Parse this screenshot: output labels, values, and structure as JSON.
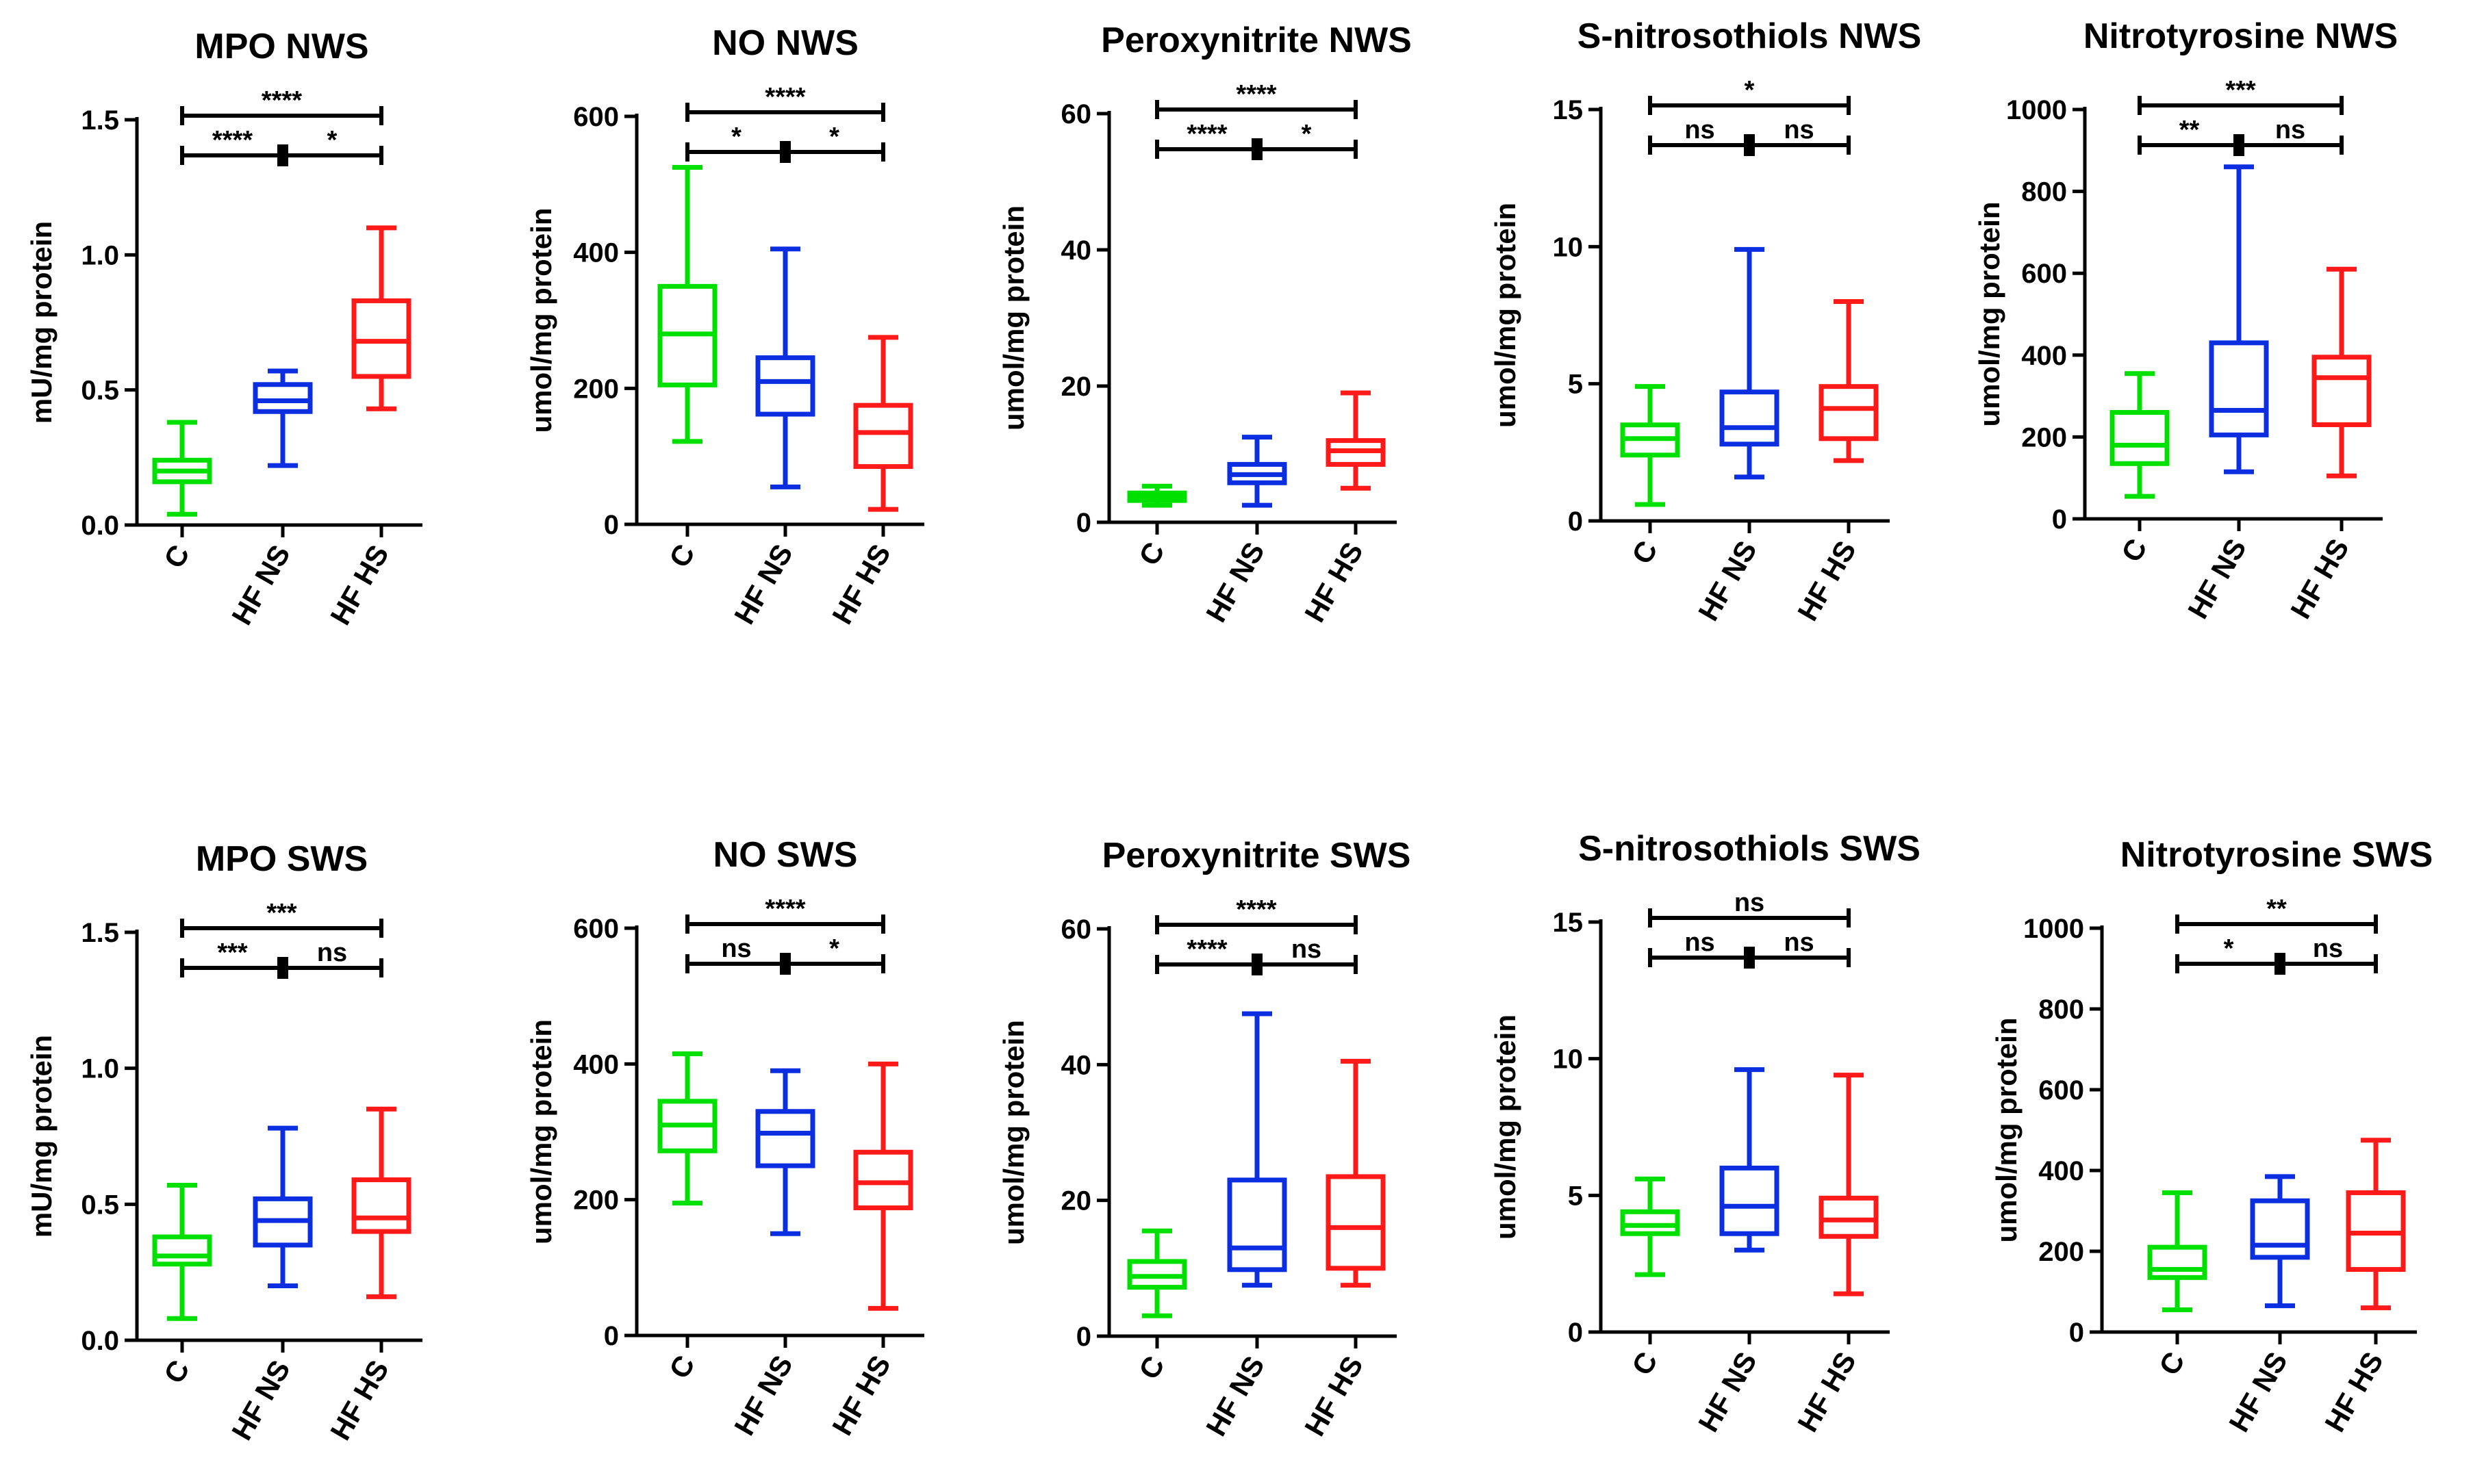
{
  "figure": {
    "panels_label": "Box plots of oxidative/nitrosative markers in NWS and SWS"
  },
  "chart_data": [
    {
      "type": "box",
      "title": "MPO NWS",
      "ylabel": "mU/mg protein",
      "categories": [
        "C",
        "HF NS",
        "HF HS"
      ],
      "ylim": [
        0,
        1.5
      ],
      "yticks": [
        "0.0",
        "0.5",
        "1.0",
        "1.5"
      ],
      "ytick_values": [
        0,
        0.5,
        1.0,
        1.5
      ],
      "boxes": [
        {
          "min": 0.04,
          "q1": 0.16,
          "median": 0.2,
          "q3": 0.24,
          "max": 0.38
        },
        {
          "min": 0.22,
          "q1": 0.42,
          "median": 0.46,
          "q3": 0.52,
          "max": 0.57
        },
        {
          "min": 0.43,
          "q1": 0.55,
          "median": 0.68,
          "q3": 0.83,
          "max": 1.1
        }
      ],
      "significance": {
        "top": "****",
        "left": "****",
        "right": "*"
      }
    },
    {
      "type": "box",
      "title": "NO NWS",
      "ylabel": "umol/mg protein",
      "categories": [
        "C",
        "HF NS",
        "HF HS"
      ],
      "ylim": [
        0,
        600
      ],
      "yticks": [
        "0",
        "200",
        "400",
        "600"
      ],
      "ytick_values": [
        0,
        200,
        400,
        600
      ],
      "boxes": [
        {
          "min": 122,
          "q1": 205,
          "median": 280,
          "q3": 350,
          "max": 525
        },
        {
          "min": 55,
          "q1": 162,
          "median": 210,
          "q3": 245,
          "max": 405
        },
        {
          "min": 22,
          "q1": 85,
          "median": 135,
          "q3": 175,
          "max": 275
        }
      ],
      "significance": {
        "top": "****",
        "left": "*",
        "right": "*"
      }
    },
    {
      "type": "box",
      "title": "Peroxynitrite NWS",
      "ylabel": "umol/mg protein",
      "categories": [
        "C",
        "HF NS",
        "HF HS"
      ],
      "ylim": [
        0,
        60
      ],
      "yticks": [
        "0",
        "20",
        "40",
        "60"
      ],
      "ytick_values": [
        0,
        20,
        40,
        60
      ],
      "boxes": [
        {
          "min": 2.5,
          "q1": 3.2,
          "median": 3.8,
          "q3": 4.3,
          "max": 5.3
        },
        {
          "min": 2.5,
          "q1": 5.8,
          "median": 7.0,
          "q3": 8.5,
          "max": 12.5
        },
        {
          "min": 5.0,
          "q1": 8.5,
          "median": 10.5,
          "q3": 12.0,
          "max": 19.0
        }
      ],
      "significance": {
        "top": "****",
        "left": "****",
        "right": "*"
      }
    },
    {
      "type": "box",
      "title": "S-nitrosothiols NWS",
      "ylabel": "umol/mg protein",
      "categories": [
        "C",
        "HF NS",
        "HF HS"
      ],
      "ylim": [
        0,
        15
      ],
      "yticks": [
        "0",
        "5",
        "10",
        "15"
      ],
      "ytick_values": [
        0,
        5,
        10,
        15
      ],
      "boxes": [
        {
          "min": 0.6,
          "q1": 2.4,
          "median": 3.0,
          "q3": 3.5,
          "max": 4.9
        },
        {
          "min": 1.6,
          "q1": 2.8,
          "median": 3.4,
          "q3": 4.7,
          "max": 9.9
        },
        {
          "min": 2.2,
          "q1": 3.0,
          "median": 4.1,
          "q3": 4.9,
          "max": 8.0
        }
      ],
      "significance": {
        "top": "*",
        "left": "ns",
        "right": "ns"
      }
    },
    {
      "type": "box",
      "title": "Nitrotyrosine NWS",
      "ylabel": "umol/mg protein",
      "categories": [
        "C",
        "HF NS",
        "HF HS"
      ],
      "ylim": [
        0,
        1000
      ],
      "yticks": [
        "0",
        "200",
        "400",
        "600",
        "800",
        "1000"
      ],
      "ytick_values": [
        0,
        200,
        400,
        600,
        800,
        1000
      ],
      "boxes": [
        {
          "min": 55,
          "q1": 135,
          "median": 180,
          "q3": 260,
          "max": 355
        },
        {
          "min": 115,
          "q1": 205,
          "median": 265,
          "q3": 430,
          "max": 860
        },
        {
          "min": 105,
          "q1": 230,
          "median": 345,
          "q3": 395,
          "max": 610
        }
      ],
      "significance": {
        "top": "***",
        "left": "**",
        "right": "ns"
      }
    },
    {
      "type": "box",
      "title": "MPO SWS",
      "ylabel": "mU/mg protein",
      "categories": [
        "C",
        "HF NS",
        "HF HS"
      ],
      "ylim": [
        0,
        1.5
      ],
      "yticks": [
        "0.0",
        "0.5",
        "1.0",
        "1.5"
      ],
      "ytick_values": [
        0,
        0.5,
        1.0,
        1.5
      ],
      "boxes": [
        {
          "min": 0.08,
          "q1": 0.28,
          "median": 0.31,
          "q3": 0.38,
          "max": 0.57
        },
        {
          "min": 0.2,
          "q1": 0.35,
          "median": 0.44,
          "q3": 0.52,
          "max": 0.78
        },
        {
          "min": 0.16,
          "q1": 0.4,
          "median": 0.45,
          "q3": 0.59,
          "max": 0.85
        }
      ],
      "significance": {
        "top": "***",
        "left": "***",
        "right": "ns"
      }
    },
    {
      "type": "box",
      "title": "NO SWS",
      "ylabel": "umol/mg protein",
      "categories": [
        "C",
        "HF NS",
        "HF HS"
      ],
      "ylim": [
        0,
        600
      ],
      "yticks": [
        "0",
        "200",
        "400",
        "600"
      ],
      "ytick_values": [
        0,
        200,
        400,
        600
      ],
      "boxes": [
        {
          "min": 195,
          "q1": 272,
          "median": 310,
          "q3": 345,
          "max": 415
        },
        {
          "min": 150,
          "q1": 250,
          "median": 298,
          "q3": 330,
          "max": 390
        },
        {
          "min": 40,
          "q1": 188,
          "median": 225,
          "q3": 270,
          "max": 400
        }
      ],
      "significance": {
        "top": "****",
        "left": "ns",
        "right": "*"
      }
    },
    {
      "type": "box",
      "title": "Peroxynitrite SWS",
      "ylabel": "umol/mg protein",
      "categories": [
        "C",
        "HF NS",
        "HF HS"
      ],
      "ylim": [
        0,
        60
      ],
      "yticks": [
        "0",
        "20",
        "40",
        "60"
      ],
      "ytick_values": [
        0,
        20,
        40,
        60
      ],
      "boxes": [
        {
          "min": 3.0,
          "q1": 7.2,
          "median": 8.8,
          "q3": 11.0,
          "max": 15.5
        },
        {
          "min": 7.5,
          "q1": 9.8,
          "median": 13.0,
          "q3": 23.0,
          "max": 47.5
        },
        {
          "min": 7.5,
          "q1": 10.0,
          "median": 16.0,
          "q3": 23.5,
          "max": 40.5
        }
      ],
      "significance": {
        "top": "****",
        "left": "****",
        "right": "ns"
      }
    },
    {
      "type": "box",
      "title": "S-nitrosothiols SWS",
      "ylabel": "umol/mg protein",
      "categories": [
        "C",
        "HF NS",
        "HF HS"
      ],
      "ylim": [
        0,
        15
      ],
      "yticks": [
        "0",
        "5",
        "10",
        "15"
      ],
      "ytick_values": [
        0,
        5,
        10,
        15
      ],
      "boxes": [
        {
          "min": 2.1,
          "q1": 3.6,
          "median": 3.9,
          "q3": 4.4,
          "max": 5.6
        },
        {
          "min": 3.0,
          "q1": 3.6,
          "median": 4.6,
          "q3": 6.0,
          "max": 9.6
        },
        {
          "min": 1.4,
          "q1": 3.5,
          "median": 4.1,
          "q3": 4.9,
          "max": 9.4
        }
      ],
      "significance": {
        "top": "ns",
        "left": "ns",
        "right": "ns"
      }
    },
    {
      "type": "box",
      "title": "Nitrotyrosine SWS",
      "ylabel": "umol/mg protein",
      "categories": [
        "C",
        "HF NS",
        "HF HS"
      ],
      "ylim": [
        0,
        1000
      ],
      "yticks": [
        "0",
        "200",
        "400",
        "600",
        "800",
        "1000"
      ],
      "ytick_values": [
        0,
        200,
        400,
        600,
        800,
        1000
      ],
      "boxes": [
        {
          "min": 55,
          "q1": 135,
          "median": 155,
          "q3": 210,
          "max": 345
        },
        {
          "min": 65,
          "q1": 185,
          "median": 215,
          "q3": 325,
          "max": 385
        },
        {
          "min": 60,
          "q1": 155,
          "median": 245,
          "q3": 345,
          "max": 475
        }
      ],
      "significance": {
        "top": "**",
        "left": "*",
        "right": "ns"
      }
    }
  ],
  "colors": {
    "C": "#00e000",
    "HF NS": "#0a2ee0",
    "HF HS": "#ff1a1a",
    "axis": "#000000"
  }
}
